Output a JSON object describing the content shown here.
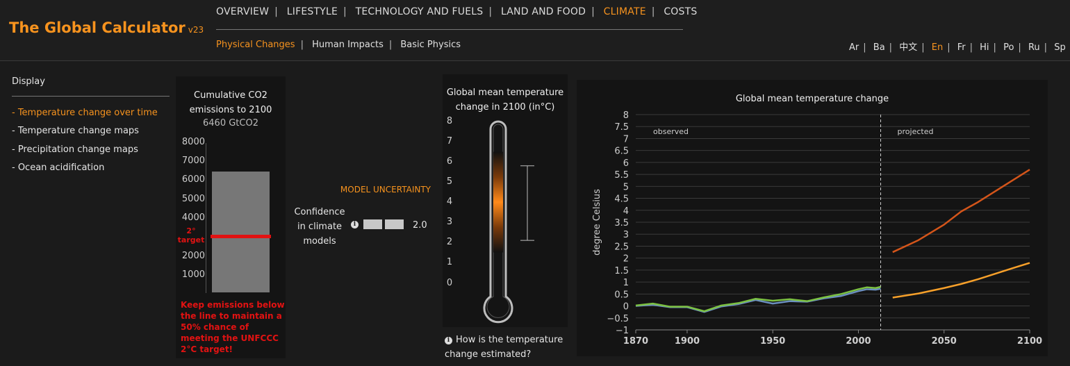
{
  "app": {
    "title": "The Global Calculator",
    "version": "v23"
  },
  "nav": {
    "main": [
      "OVERVIEW",
      "LIFESTYLE",
      "TECHNOLOGY AND FUELS",
      "LAND AND FOOD",
      "CLIMATE",
      "COSTS"
    ],
    "main_active": "CLIMATE",
    "sub": [
      "Physical Changes",
      "Human Impacts",
      "Basic Physics"
    ],
    "sub_active": "Physical Changes",
    "languages": [
      "Ar",
      "Ba",
      "中文",
      "En",
      "Fr",
      "Hi",
      "Po",
      "Ru",
      "Sp"
    ],
    "language_active": "En"
  },
  "display": {
    "heading": "Display",
    "items": [
      "- Temperature change over time",
      "- Temperature change maps",
      "- Precipitation change maps",
      "- Ocean acidification"
    ],
    "active_index": 0
  },
  "co2": {
    "title_line1": "Cumulative CO2",
    "title_line2": "emissions to 2100",
    "value": "6460 GtCO2",
    "ticks": [
      "8000",
      "7000",
      "6000",
      "5000",
      "4000",
      "3000",
      "2000",
      "1000"
    ],
    "target_label_line1": "2°",
    "target_label_line2": "target",
    "warning": "Keep emissions below the line to maintain a 50% chance of meeting the UNFCCC 2°C target!",
    "bar_value": 6460,
    "target_value": 3010,
    "scale_max": 8000,
    "colors": {
      "bar": "#777777",
      "target": "#e21212"
    }
  },
  "model_uncertainty": {
    "title": "MODEL UNCERTAINTY",
    "label_line1": "Confidence",
    "label_line2": "in climate",
    "label_line3": "models",
    "value": "2.0"
  },
  "thermometer": {
    "title_line1": "Global mean temperature",
    "title_line2": "change in 2100 (in°C)",
    "ticks": [
      "8",
      "7",
      "6",
      "5",
      "4",
      "3",
      "2",
      "1",
      "0"
    ],
    "range_low": 1.5,
    "range_high": 6.5,
    "central": 4.0,
    "uncertainty_low": 2.1,
    "uncertainty_high": 5.8,
    "info_text": "How is the temperature change estimated?"
  },
  "chart_data": {
    "type": "line",
    "title": "Global mean temperature change",
    "ylabel": "degree Celsius",
    "xlabel": "",
    "xlim": [
      1870,
      2100
    ],
    "ylim": [
      -1,
      8
    ],
    "x_ticks": [
      "1870",
      "1900",
      "1950",
      "2000",
      "2050",
      "2100"
    ],
    "y_ticks": [
      "8",
      "7.5",
      "7",
      "6.5",
      "6",
      "5.5",
      "5",
      "4.5",
      "4",
      "3.5",
      "3",
      "2.5",
      "2",
      "1.5",
      "1",
      "0.5",
      "0",
      "−0.5",
      "−1"
    ],
    "grid": true,
    "annotations": {
      "observed": "observed",
      "projected": "projected",
      "divider_year": 2013
    },
    "series": [
      {
        "color": "#6b8fbf",
        "x": [
          1870,
          1880,
          1890,
          1900,
          1910,
          1920,
          1930,
          1940,
          1950,
          1960,
          1970,
          1980,
          1990,
          2000,
          2005,
          2010,
          2013
        ],
        "values": [
          0.0,
          0.05,
          -0.05,
          -0.05,
          -0.25,
          -0.02,
          0.08,
          0.25,
          0.1,
          0.2,
          0.18,
          0.32,
          0.42,
          0.62,
          0.7,
          0.68,
          0.72
        ]
      },
      {
        "color": "#7cc242",
        "x": [
          1870,
          1880,
          1890,
          1900,
          1910,
          1920,
          1930,
          1940,
          1950,
          1960,
          1970,
          1980,
          1990,
          2000,
          2005,
          2010,
          2013
        ],
        "values": [
          0.02,
          0.1,
          -0.03,
          -0.03,
          -0.22,
          0.02,
          0.12,
          0.3,
          0.22,
          0.28,
          0.2,
          0.36,
          0.5,
          0.7,
          0.78,
          0.75,
          0.8
        ]
      },
      {
        "color": "#d4551a",
        "x": [
          2020,
          2035,
          2050,
          2060,
          2070,
          2080,
          2090,
          2100
        ],
        "values": [
          2.25,
          2.75,
          3.4,
          3.95,
          4.35,
          4.8,
          5.25,
          5.7
        ]
      },
      {
        "color": "#f7a02a",
        "x": [
          2020,
          2035,
          2050,
          2060,
          2070,
          2080,
          2090,
          2100
        ],
        "values": [
          0.35,
          0.52,
          0.75,
          0.92,
          1.12,
          1.35,
          1.58,
          1.8
        ]
      }
    ]
  }
}
